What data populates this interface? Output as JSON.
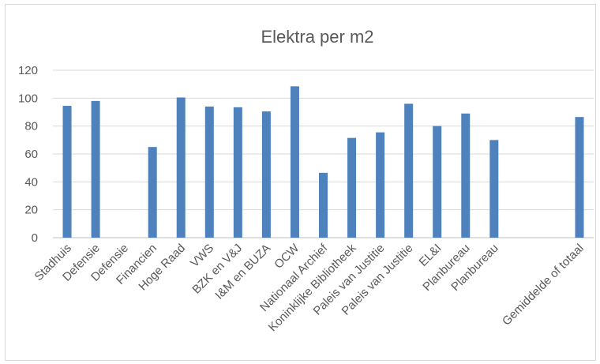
{
  "chart_data": {
    "type": "bar",
    "title": "Elektra per m2",
    "xlabel": "",
    "ylabel": "",
    "ylim": [
      0,
      120
    ],
    "yticks": [
      0,
      20,
      40,
      60,
      80,
      100,
      120
    ],
    "grid": true,
    "legend": "none",
    "bar_color": "#4f81bd",
    "categories": [
      "Stadhuis",
      "Defensie",
      "Defensie",
      "Financien",
      "Hoge Raad",
      "VWS",
      "BZK en V&J",
      "I&M en BUZA",
      "OCW",
      "Nationaal Archief",
      "Koninklijke Bibliotheek",
      "Paleis van Justitie",
      "Paleis van Justitie",
      "EL&I",
      "Planbureau",
      "Planbureau",
      "",
      "",
      "Gemiddelde of totaal"
    ],
    "values": [
      94.5,
      98,
      null,
      65,
      100.5,
      94,
      93.5,
      90.5,
      108.5,
      46.5,
      71.5,
      75.5,
      96,
      80,
      89,
      70,
      null,
      null,
      86.5
    ]
  }
}
